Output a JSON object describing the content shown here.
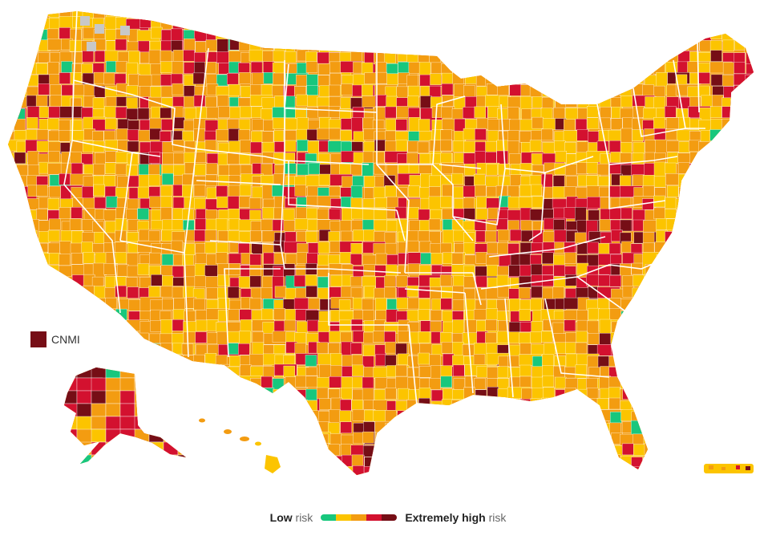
{
  "legend": {
    "low_bold": "Low",
    "low_suffix": " risk",
    "high_bold": "Extremely high",
    "high_suffix": " risk",
    "levels": [
      {
        "level": "low",
        "color": "#18c77d"
      },
      {
        "level": "moderate",
        "color": "#fcc400"
      },
      {
        "level": "high",
        "color": "#f39c11"
      },
      {
        "level": "very-high",
        "color": "#d3112f"
      },
      {
        "level": "extremely-high",
        "color": "#760e16"
      }
    ]
  },
  "territory_label": "CNMI",
  "territory_level": "extremely-high",
  "colors": {
    "no_data": "#c8c8c8",
    "borders": "#ffffff",
    "background": "#ffffff"
  }
}
